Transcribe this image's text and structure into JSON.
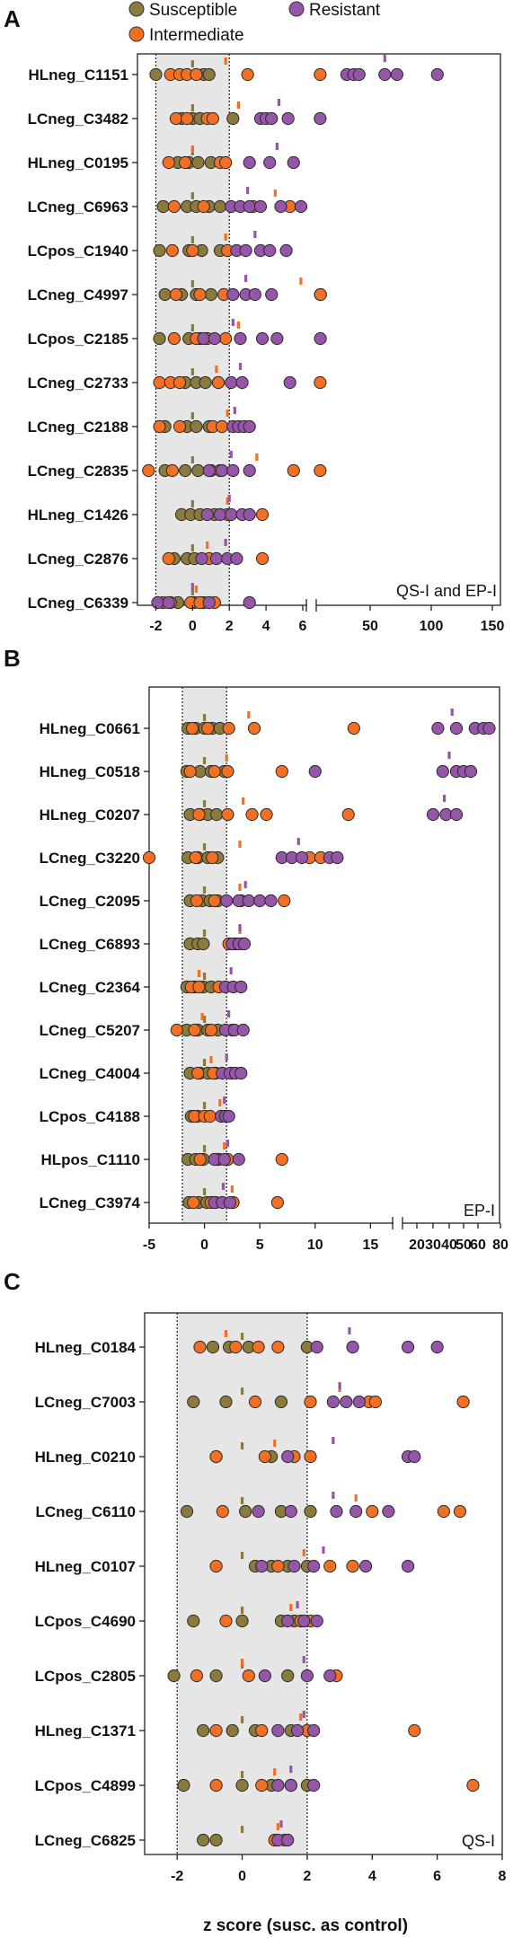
{
  "legend": {
    "items": [
      {
        "label": "Susceptible",
        "color": "#8a7a3c"
      },
      {
        "label": "Intermediate",
        "color": "#f36f24"
      },
      {
        "label": "Resistant",
        "color": "#9555a9"
      }
    ]
  },
  "chart_data": [
    {
      "panel": "A",
      "type": "scatter",
      "corner_label": "QS-I and EP-I",
      "xlabel": "",
      "ylabel": "",
      "shaded_range": [
        -2,
        2
      ],
      "axis_breaks": [
        6
      ],
      "x_ticks": [
        -2,
        0,
        2,
        4,
        6,
        50,
        100,
        150
      ],
      "rows": [
        {
          "name": "HLneg_C1151",
          "Susceptible": [
            -2,
            0.6,
            0.9
          ],
          "Intermediate": [
            -1.2,
            -0.7,
            -0.3,
            0.2,
            3,
            6.5
          ],
          "Resistant": [
            33,
            38,
            42,
            62,
            72,
            105
          ],
          "means": {
            "Susceptible": 0,
            "Intermediate": 1.8,
            "Resistant": 62
          }
        },
        {
          "name": "LCneg_C3482",
          "Susceptible": [
            -0.6,
            0,
            0.4,
            2.2
          ],
          "Intermediate": [
            -0.9,
            -0.3,
            0.8,
            1.1
          ],
          "Resistant": [
            3.7,
            4,
            4.3,
            5.2,
            6.5
          ],
          "means": {
            "Susceptible": 0,
            "Intermediate": 2.5,
            "Resistant": 4.7
          }
        },
        {
          "name": "HLneg_C0195",
          "Susceptible": [
            -0.8,
            -0.2,
            0.3,
            1
          ],
          "Intermediate": [
            -1.3,
            -0.4,
            1.5,
            1.8
          ],
          "Resistant": [
            4.2,
            5.5,
            3.1
          ],
          "means": {
            "Susceptible": 0,
            "Intermediate": 0,
            "Resistant": 4.6
          }
        },
        {
          "name": "LCneg_C6963",
          "Susceptible": [
            -1.6,
            -0.3,
            0.2,
            0.9,
            1.5
          ],
          "Intermediate": [
            -1,
            0.6,
            3.3,
            5.3
          ],
          "Resistant": [
            2.1,
            2.6,
            3.1,
            3.7,
            4.8,
            5.9
          ],
          "means": {
            "Susceptible": 0,
            "Intermediate": 4.5,
            "Resistant": 3
          }
        },
        {
          "name": "LCpos_C1940",
          "Susceptible": [
            -1.8,
            -0.2,
            0.5,
            1.5
          ],
          "Intermediate": [
            -1.1,
            0,
            1.9
          ],
          "Resistant": [
            2.4,
            2.9,
            3.7,
            4.2,
            5.1
          ],
          "means": {
            "Susceptible": 0,
            "Intermediate": 1.8,
            "Resistant": 3.4
          }
        },
        {
          "name": "LCneg_C4997",
          "Susceptible": [
            -1.5,
            -0.6,
            0.2,
            1
          ],
          "Intermediate": [
            -0.9,
            0.4,
            1.7,
            6.8,
            7.1
          ],
          "Resistant": [
            2.2,
            2.9,
            3.4,
            4.3
          ],
          "means": {
            "Susceptible": 0,
            "Intermediate": 5.9,
            "Resistant": 2.9
          }
        },
        {
          "name": "LCpos_C2185",
          "Susceptible": [
            -1.8,
            -0.2,
            0.4
          ],
          "Intermediate": [
            -1,
            0.2,
            0.8,
            1.8
          ],
          "Resistant": [
            0.6,
            1.2,
            2.6,
            3.8,
            4.6,
            6.8
          ],
          "means": {
            "Susceptible": 0,
            "Intermediate": 2.5,
            "Resistant": 2.2
          }
        },
        {
          "name": "LCneg_C2733",
          "Susceptible": [
            -0.4,
            0.2,
            0.7,
            1.4
          ],
          "Intermediate": [
            -1.8,
            -1.2,
            -0.7,
            1.4,
            6.5
          ],
          "Resistant": [
            2.1,
            2.7,
            5.3
          ],
          "means": {
            "Susceptible": 0,
            "Intermediate": 1.3,
            "Resistant": 2.6
          }
        },
        {
          "name": "LCneg_C2188",
          "Susceptible": [
            -1.5,
            -0.3,
            0.2,
            0.9
          ],
          "Intermediate": [
            -1.8,
            -0.7,
            1.1,
            1.6
          ],
          "Resistant": [
            2.2,
            2.5,
            2.8,
            3.1
          ],
          "means": {
            "Susceptible": 0,
            "Intermediate": 1.9,
            "Resistant": 2.3
          }
        },
        {
          "name": "LCneg_C2835",
          "Susceptible": [
            -1.5,
            -0.4,
            0.3,
            1
          ],
          "Intermediate": [
            -2.4,
            -1.1,
            1.5,
            5.5,
            6.5
          ],
          "Resistant": [
            0.9,
            1.6,
            2.2,
            3.1
          ],
          "means": {
            "Susceptible": 0,
            "Intermediate": 3.5,
            "Resistant": 2.1
          }
        },
        {
          "name": "HLneg_C1426",
          "Susceptible": [
            -0.6,
            -0.1,
            0.4,
            1.2
          ],
          "Intermediate": [
            1.9,
            3.8
          ],
          "Resistant": [
            0.8,
            1.5,
            2.1,
            2.7,
            3.1
          ],
          "means": {
            "Susceptible": 0,
            "Intermediate": 1.9,
            "Resistant": 2
          }
        },
        {
          "name": "LCneg_C2876",
          "Susceptible": [
            -1,
            -0.3,
            0.1
          ],
          "Intermediate": [
            -1.3,
            0.9,
            3.8
          ],
          "Resistant": [
            0.5,
            1.3,
            1.9,
            2.4
          ],
          "means": {
            "Susceptible": 0,
            "Intermediate": 0.8,
            "Resistant": 1.8
          }
        },
        {
          "name": "LCneg_C6339",
          "Susceptible": [
            -1.6,
            -0.8,
            0.1,
            0.6
          ],
          "Intermediate": [
            -1.2,
            -0.1,
            0.4,
            1.2
          ],
          "Resistant": [
            -1.9,
            -1.3,
            0.9,
            3.1
          ],
          "means": {
            "Susceptible": 0,
            "Intermediate": 0.2,
            "Resistant": 0
          }
        }
      ]
    },
    {
      "panel": "B",
      "type": "scatter",
      "corner_label": "EP-I",
      "xlabel": "",
      "ylabel": "",
      "shaded_range": [
        -2,
        2
      ],
      "axis_breaks": [
        17
      ],
      "x_ticks": [
        -5,
        0,
        5,
        10,
        15,
        20,
        30,
        40,
        50,
        60,
        80
      ],
      "rows": [
        {
          "name": "HLneg_C0661",
          "Susceptible": [
            -1.5,
            -0.8,
            0,
            0.7,
            1.4
          ],
          "Intermediate": [
            -1.1,
            0.3,
            2.2,
            4.5,
            13.5
          ],
          "Resistant": [
            33,
            45,
            58,
            65,
            70
          ],
          "means": {
            "Susceptible": 0,
            "Intermediate": 4,
            "Resistant": 42
          }
        },
        {
          "name": "HLneg_C0518",
          "Susceptible": [
            -1.6,
            -0.4,
            0.6,
            1.8
          ],
          "Intermediate": [
            -1.3,
            0.9,
            2.1,
            7
          ],
          "Resistant": [
            10,
            36,
            45,
            50,
            55
          ],
          "means": {
            "Susceptible": 0,
            "Intermediate": 2,
            "Resistant": 40
          }
        },
        {
          "name": "HLneg_C0207",
          "Susceptible": [
            -1.3,
            -0.4,
            0.3,
            1.1
          ],
          "Intermediate": [
            -0.5,
            2.1,
            4.3,
            5.6,
            13
          ],
          "Resistant": [
            30,
            38,
            45
          ],
          "means": {
            "Susceptible": 0,
            "Intermediate": 3.5,
            "Resistant": 37
          }
        },
        {
          "name": "LCneg_C3220",
          "Susceptible": [
            -1.5,
            -0.6,
            0.3,
            1.2
          ],
          "Intermediate": [
            -5,
            -0.8,
            0.7,
            9.5,
            10.5
          ],
          "Resistant": [
            7,
            7.9,
            8.8,
            11.3,
            12
          ],
          "means": {
            "Susceptible": 0,
            "Intermediate": 3.2,
            "Resistant": 8.5
          }
        },
        {
          "name": "LCneg_C2095",
          "Susceptible": [
            -1.3,
            -0.2,
            0.5,
            1.2
          ],
          "Intermediate": [
            -0.7,
            0.9,
            3.3,
            7.2
          ],
          "Resistant": [
            2,
            3.1,
            4,
            5,
            6
          ],
          "means": {
            "Susceptible": 0,
            "Intermediate": 3.2,
            "Resistant": 3.7
          }
        },
        {
          "name": "LCneg_C6893",
          "Susceptible": [
            -1.3,
            -0.6,
            -0.1
          ],
          "Intermediate": [
            2.2,
            2.8,
            3.5
          ],
          "Resistant": [
            2.5,
            3.1,
            3.6
          ],
          "means": {
            "Susceptible": 0,
            "Intermediate": 3.2,
            "Resistant": 3.2
          }
        },
        {
          "name": "LCneg_C2364",
          "Susceptible": [
            -1.6,
            -0.9,
            -0.1,
            0.6
          ],
          "Intermediate": [
            -1.2,
            -0.5,
            1.3
          ],
          "Resistant": [
            1.9,
            2.6,
            3.3
          ],
          "means": {
            "Susceptible": 0,
            "Intermediate": -0.5,
            "Resistant": 2.4
          }
        },
        {
          "name": "LCneg_C5207",
          "Susceptible": [
            -1.6,
            -0.6,
            0.3,
            1.2
          ],
          "Intermediate": [
            -2.5,
            -0.9,
            0.6,
            2.5
          ],
          "Resistant": [
            1.9,
            2.7,
            3.5
          ],
          "means": {
            "Susceptible": 0,
            "Intermediate": -0.2,
            "Resistant": 2.2
          }
        },
        {
          "name": "LCneg_C4004",
          "Susceptible": [
            -1.3,
            -0.4,
            0.3,
            1
          ],
          "Intermediate": [
            -0.6,
            0.8,
            2.4
          ],
          "Resistant": [
            1.6,
            2.3,
            2.8,
            3.3
          ],
          "means": {
            "Susceptible": 0,
            "Intermediate": 0.6,
            "Resistant": 2
          }
        },
        {
          "name": "LCpos_C4188",
          "Susceptible": [
            -1.2,
            -0.6
          ],
          "Intermediate": [
            -0.9,
            0,
            0.5
          ],
          "Resistant": [
            1.5,
            1.9,
            2.2
          ],
          "means": {
            "Susceptible": 0,
            "Intermediate": 1.4,
            "Resistant": 1.8
          }
        },
        {
          "name": "HLpos_C1110",
          "Susceptible": [
            -1.5,
            -0.8,
            -0.1,
            1.3
          ],
          "Intermediate": [
            -0.4,
            1.1,
            2.1,
            7
          ],
          "Resistant": [
            0.9,
            1.8,
            3.1
          ],
          "means": {
            "Susceptible": 0,
            "Intermediate": 1.8,
            "Resistant": 2.1
          }
        },
        {
          "name": "LCneg_C3974",
          "Susceptible": [
            -1.4,
            -0.5,
            0.2,
            1
          ],
          "Intermediate": [
            -1,
            0.6,
            2.6,
            6.6
          ],
          "Resistant": [
            0.9,
            1.6,
            2.3
          ],
          "means": {
            "Susceptible": 0,
            "Intermediate": 2.5,
            "Resistant": 1.7
          }
        }
      ]
    },
    {
      "panel": "C",
      "type": "scatter",
      "corner_label": "QS-I",
      "xlabel": "z score (susc. as control)",
      "ylabel": "",
      "shaded_range": [
        -2,
        2
      ],
      "axis_breaks": [],
      "x_ticks": [
        -2,
        0,
        2,
        4,
        6,
        8
      ],
      "rows": [
        {
          "name": "HLneg_C0184",
          "Susceptible": [
            -0.9,
            -0.4,
            0.2,
            2
          ],
          "Intermediate": [
            -1.3,
            -0.2,
            0.5,
            1.1
          ],
          "Resistant": [
            2.3,
            3.4,
            5.1,
            6
          ],
          "means": {
            "Susceptible": 0,
            "Intermediate": -0.5,
            "Resistant": 3.3
          }
        },
        {
          "name": "LCneg_C7003",
          "Susceptible": [
            -1.5,
            -0.5,
            1.2
          ],
          "Intermediate": [
            0.4,
            2.1,
            3.9,
            4.1,
            6.8
          ],
          "Resistant": [
            2.8,
            3.2,
            3.6
          ],
          "means": {
            "Susceptible": 0,
            "Intermediate": 3,
            "Resistant": 3
          }
        },
        {
          "name": "HLneg_C0210",
          "Susceptible": [
            -0.8,
            0.9
          ],
          "Intermediate": [
            -0.8,
            0.7,
            1.6,
            2.1
          ],
          "Resistant": [
            1.4,
            5.1,
            5.3
          ],
          "means": {
            "Susceptible": 0,
            "Intermediate": 1,
            "Resistant": 2.8
          }
        },
        {
          "name": "LCneg_C6110",
          "Susceptible": [
            -1.7,
            0.1,
            1.2,
            2.1
          ],
          "Intermediate": [
            -0.6,
            4,
            6.2,
            6.7
          ],
          "Resistant": [
            0.5,
            1.5,
            2.9,
            3.5,
            4.5
          ],
          "means": {
            "Susceptible": 0,
            "Intermediate": 3.5,
            "Resistant": 2.8
          }
        },
        {
          "name": "HLneg_C0107",
          "Susceptible": [
            0.4,
            0.9,
            1.4,
            2
          ],
          "Intermediate": [
            -0.8,
            1.1,
            2.7,
            3.4
          ],
          "Resistant": [
            0.6,
            1.6,
            2.2,
            3.8,
            5.1
          ],
          "means": {
            "Susceptible": 0,
            "Intermediate": 1.9,
            "Resistant": 2.5
          }
        },
        {
          "name": "LCpos_C4690",
          "Susceptible": [
            -1.5,
            0,
            1.2,
            1.6
          ],
          "Intermediate": [
            -0.5,
            1.8,
            2.1
          ],
          "Resistant": [
            1.4,
            1.9,
            2.3
          ],
          "means": {
            "Susceptible": 0,
            "Intermediate": 1.5,
            "Resistant": 1.7
          }
        },
        {
          "name": "LCpos_C2805",
          "Susceptible": [
            -2.1,
            -0.8,
            1.4
          ],
          "Intermediate": [
            -1.4,
            0.2,
            2.9
          ],
          "Resistant": [
            0.7,
            2,
            2.7
          ],
          "means": {
            "Susceptible": 0,
            "Intermediate": 0,
            "Resistant": 1.9
          }
        },
        {
          "name": "HLneg_C1371",
          "Susceptible": [
            -1.2,
            -0.3,
            0.4,
            1.5
          ],
          "Intermediate": [
            -0.8,
            0.6,
            2,
            5.3
          ],
          "Resistant": [
            1.1,
            1.7,
            2.2
          ],
          "means": {
            "Susceptible": 0,
            "Intermediate": 1.8,
            "Resistant": 1.9
          }
        },
        {
          "name": "LCpos_C4899",
          "Susceptible": [
            -1.8,
            0,
            0.9,
            2
          ],
          "Intermediate": [
            -0.8,
            0.6,
            1.5,
            7.1
          ],
          "Resistant": [
            1.1,
            1.5,
            2.2
          ],
          "means": {
            "Susceptible": 0,
            "Intermediate": 1,
            "Resistant": 1.5
          }
        },
        {
          "name": "LCneg_C6825",
          "Susceptible": [
            -1.2,
            -0.8
          ],
          "Intermediate": [
            1,
            1.3
          ],
          "Resistant": [
            1.1,
            1.4
          ],
          "means": {
            "Susceptible": 0,
            "Intermediate": 1.1,
            "Resistant": 1.2
          }
        }
      ]
    }
  ]
}
